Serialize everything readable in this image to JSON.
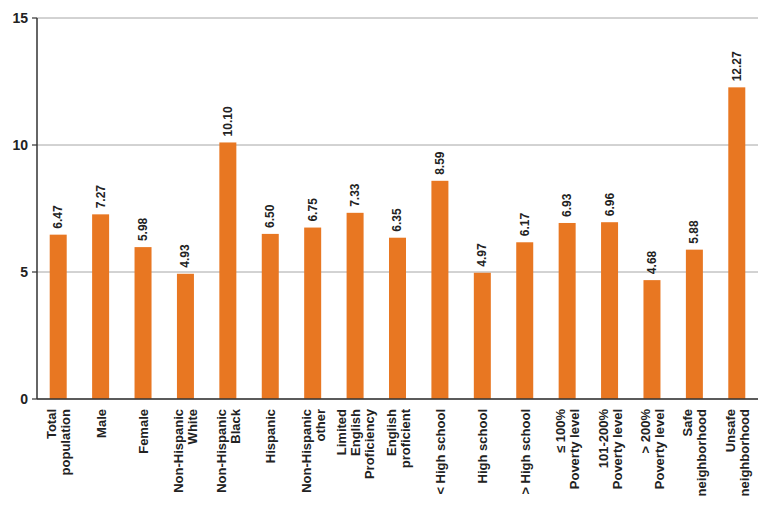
{
  "chart_data": {
    "type": "bar",
    "categories": [
      "Total population",
      "Male",
      "Female",
      "Non-Hispanic White",
      "Non-Hispanic Black",
      "Hispanic",
      "Non-Hispanic other",
      "Limited English Proficiency",
      "English proficient",
      "< High school",
      "High school",
      "> High school",
      "≤ 100% Poverty level",
      "101-200% Poverty level",
      "> 200% Poverty level",
      "Safe neighborhood",
      "Unsafe neighborhood"
    ],
    "values": [
      6.47,
      7.27,
      5.98,
      4.93,
      10.1,
      6.5,
      6.75,
      7.33,
      6.35,
      8.59,
      4.97,
      6.17,
      6.93,
      6.96,
      4.68,
      5.88,
      12.27
    ],
    "value_labels": [
      "6.47",
      "7.27",
      "5.98",
      "4.93",
      "10.10",
      "6.50",
      "6.75",
      "7.33",
      "6.35",
      "8.59",
      "4.97",
      "6.17",
      "6.93",
      "6.96",
      "4.68",
      "5.88",
      "12.27"
    ],
    "color": "#e87722",
    "ylim": [
      0,
      15
    ],
    "yticks": [
      0,
      5,
      10,
      15
    ],
    "grid": true,
    "data_labels": true
  }
}
